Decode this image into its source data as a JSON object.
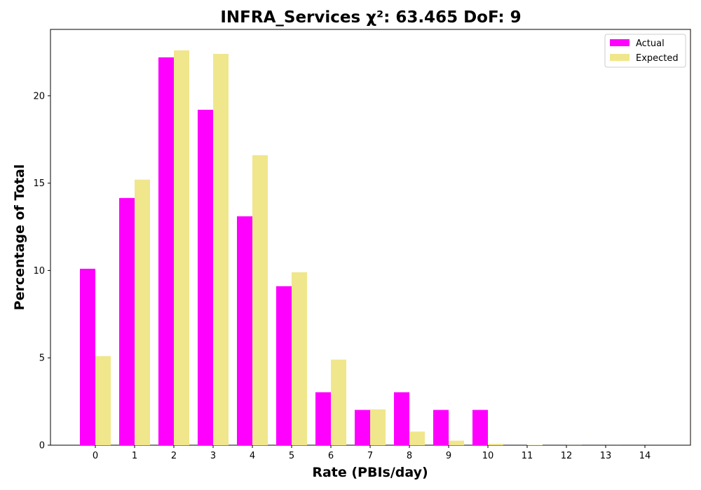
{
  "chart_data": {
    "type": "bar",
    "title": "INFRA_Services χ²: 63.465 DoF: 9",
    "xlabel": "Rate (PBIs/day)",
    "ylabel": "Percentage of Total",
    "categories": [
      "0",
      "1",
      "2",
      "3",
      "4",
      "5",
      "6",
      "7",
      "8",
      "9",
      "10",
      "11",
      "12",
      "13",
      "14"
    ],
    "ylim": [
      0,
      23.8
    ],
    "yticks": [
      0,
      5,
      10,
      15,
      20
    ],
    "grid": false,
    "legend_position": "top-right",
    "series": [
      {
        "name": "Actual",
        "color": "#ff00ff",
        "values": [
          10.1,
          14.15,
          22.2,
          19.2,
          13.1,
          9.1,
          3.03,
          2.02,
          3.03,
          2.02,
          2.02,
          0,
          0,
          0,
          0
        ]
      },
      {
        "name": "Expected",
        "color": "#f0e68c",
        "values": [
          5.1,
          15.2,
          22.6,
          22.4,
          16.6,
          9.9,
          4.9,
          2.05,
          0.78,
          0.26,
          0.08,
          0.02,
          0.005,
          0.001,
          0.0002
        ]
      }
    ]
  }
}
